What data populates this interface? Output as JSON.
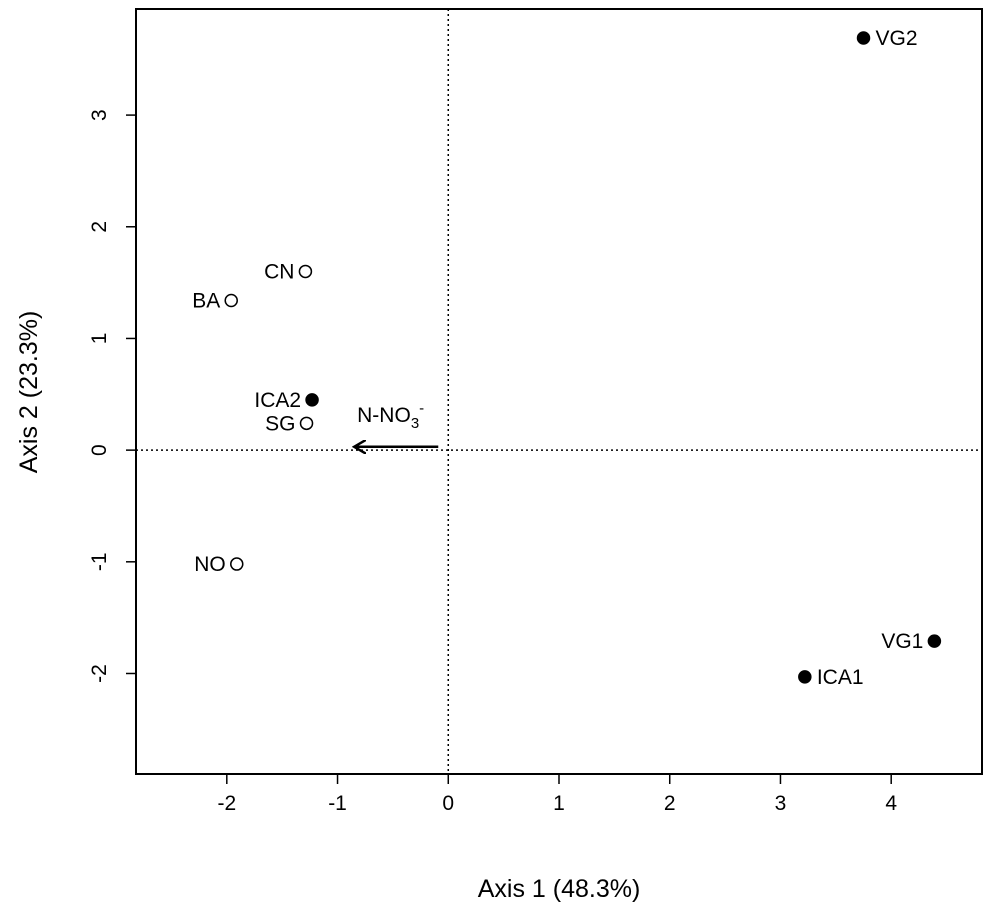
{
  "chart_data": {
    "type": "scatter",
    "title": "",
    "xlabel": "Axis 1 (48.3%)",
    "ylabel": "Axis 2 (23.3%)",
    "xlim": [
      -2.82,
      4.82
    ],
    "ylim": [
      -2.9,
      3.95
    ],
    "xticks": [
      -2,
      -1,
      0,
      1,
      2,
      3,
      4
    ],
    "yticks": [
      -2,
      -1,
      0,
      1,
      2,
      3
    ],
    "xtick_labels": [
      "-2",
      "-1",
      "0",
      "1",
      "2",
      "3",
      "4"
    ],
    "ytick_labels": [
      "-2",
      "-1",
      "0",
      "1",
      "2",
      "3"
    ],
    "reference_lines": {
      "x": 0,
      "y": 0,
      "style": "dotted"
    },
    "points": [
      {
        "label": "VG2",
        "x": 3.75,
        "y": 3.69,
        "filled": true,
        "label_side": "right"
      },
      {
        "label": "CN",
        "x": -1.29,
        "y": 1.6,
        "filled": false,
        "label_side": "left"
      },
      {
        "label": "BA",
        "x": -1.96,
        "y": 1.34,
        "filled": false,
        "label_side": "left"
      },
      {
        "label": "ICA2",
        "x": -1.23,
        "y": 0.45,
        "filled": true,
        "label_side": "left"
      },
      {
        "label": "SG",
        "x": -1.28,
        "y": 0.24,
        "filled": false,
        "label_side": "left"
      },
      {
        "label": "NO",
        "x": -1.91,
        "y": -1.02,
        "filled": false,
        "label_side": "left"
      },
      {
        "label": "VG1",
        "x": 4.39,
        "y": -1.71,
        "filled": true,
        "label_side": "left"
      },
      {
        "label": "ICA1",
        "x": 3.22,
        "y": -2.03,
        "filled": true,
        "label_side": "right"
      }
    ],
    "vectors": [
      {
        "label": "N-NO",
        "subscript": "3",
        "superscript": "-",
        "x_end": -0.85,
        "y_end": 0.03
      }
    ],
    "marker_fill": "#000000",
    "legend": "none",
    "grid": false
  }
}
